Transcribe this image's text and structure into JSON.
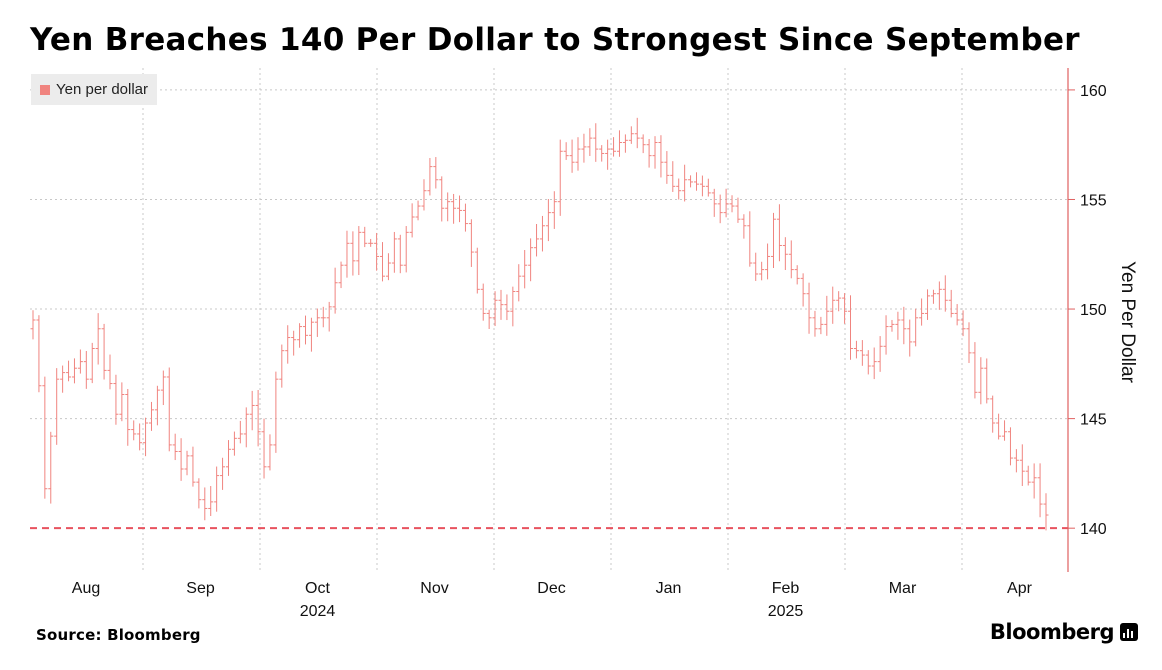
{
  "chart_data": {
    "type": "ohlc",
    "title": "Yen Breaches 140 Per Dollar to Strongest Since September",
    "ylabel": "Yen Per Dollar",
    "legend": [
      "Yen per dollar"
    ],
    "legend_position": "top-left",
    "y_axis_position": "right",
    "ylim": [
      138.0,
      161.0
    ],
    "yticks": [
      140,
      145,
      150,
      155,
      160
    ],
    "reference_line": 140,
    "grid": true,
    "months": [
      {
        "label": "Aug",
        "year": ""
      },
      {
        "label": "Sep",
        "year": ""
      },
      {
        "label": "Oct",
        "year": "2024"
      },
      {
        "label": "Nov",
        "year": ""
      },
      {
        "label": "Dec",
        "year": ""
      },
      {
        "label": "Jan",
        "year": ""
      },
      {
        "label": "Feb",
        "year": "2025"
      },
      {
        "label": "Mar",
        "year": ""
      },
      {
        "label": "Apr",
        "year": ""
      }
    ],
    "series": [
      {
        "name": "Yen per dollar",
        "color": "#f0847f",
        "close": [
          149.5,
          146.5,
          141.8,
          144.2,
          146.8,
          147.1,
          146.9,
          147.3,
          147.6,
          146.8,
          148.2,
          149.1,
          147.2,
          146.6,
          145.2,
          146.1,
          144.5,
          144.3,
          143.9,
          144.8,
          145.4,
          146.3,
          146.9,
          143.8,
          143.5,
          142.7,
          143.3,
          142.1,
          141.3,
          140.9,
          141.2,
          142.4,
          142.8,
          143.6,
          144.1,
          144.3,
          145.2,
          145.6,
          144.4,
          142.8,
          143.8,
          146.8,
          148.1,
          148.7,
          148.6,
          149.2,
          148.8,
          149.4,
          149.6,
          149.6,
          150.1,
          151.2,
          152.0,
          153.0,
          152.2,
          153.5,
          153.0,
          153.0,
          152.4,
          151.5,
          152.1,
          153.2,
          152.0,
          153.5,
          154.2,
          154.7,
          155.4,
          156.5,
          155.9,
          154.6,
          154.9,
          154.6,
          154.5,
          153.9,
          152.6,
          150.9,
          149.8,
          149.6,
          150.4,
          150.2,
          149.9,
          150.8,
          151.5,
          152.0,
          152.8,
          153.2,
          153.8,
          154.4,
          154.9,
          157.2,
          157.0,
          156.7,
          157.3,
          157.4,
          157.8,
          157.3,
          157.1,
          157.3,
          157.2,
          157.6,
          157.7,
          158.0,
          157.8,
          157.5,
          157.0,
          157.6,
          156.7,
          156.1,
          155.6,
          155.4,
          155.9,
          155.8,
          155.7,
          155.6,
          155.3,
          154.8,
          154.4,
          154.8,
          154.7,
          154.1,
          153.8,
          152.1,
          151.6,
          151.8,
          152.4,
          154.1,
          152.9,
          152.5,
          151.8,
          151.4,
          150.7,
          149.6,
          149.1,
          149.3,
          149.9,
          150.4,
          150.5,
          149.9,
          148.2,
          148.1,
          147.9,
          147.4,
          147.6,
          148.3,
          149.2,
          149.3,
          149.5,
          149.1,
          148.5,
          149.6,
          149.8,
          150.6,
          150.7,
          150.9,
          150.4,
          149.8,
          149.5,
          149.1,
          148.0,
          146.2,
          147.3,
          145.9,
          144.8,
          144.2,
          144.4,
          143.2,
          143.1,
          142.6,
          142.1,
          142.3,
          141.1,
          140.6
        ]
      }
    ]
  },
  "source": "Source: Bloomberg",
  "brand": "Bloomberg"
}
